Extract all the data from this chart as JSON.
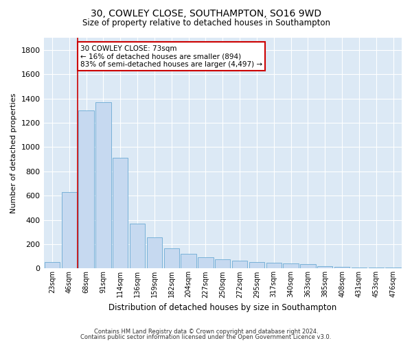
{
  "title_line1": "30, COWLEY CLOSE, SOUTHAMPTON, SO16 9WD",
  "title_line2": "Size of property relative to detached houses in Southampton",
  "xlabel": "Distribution of detached houses by size in Southampton",
  "ylabel": "Number of detached properties",
  "bar_color": "#c6d9f0",
  "bar_edge_color": "#6aaad4",
  "background_color": "#dce9f5",
  "grid_color": "#ffffff",
  "categories": [
    "23sqm",
    "46sqm",
    "68sqm",
    "91sqm",
    "114sqm",
    "136sqm",
    "159sqm",
    "182sqm",
    "204sqm",
    "227sqm",
    "250sqm",
    "272sqm",
    "295sqm",
    "317sqm",
    "340sqm",
    "363sqm",
    "385sqm",
    "408sqm",
    "431sqm",
    "453sqm",
    "476sqm"
  ],
  "values": [
    55,
    630,
    1300,
    1370,
    910,
    370,
    255,
    165,
    120,
    90,
    75,
    65,
    55,
    50,
    40,
    35,
    20,
    15,
    10,
    8,
    8
  ],
  "ylim": [
    0,
    1900
  ],
  "yticks": [
    0,
    200,
    400,
    600,
    800,
    1000,
    1200,
    1400,
    1600,
    1800
  ],
  "annotation_text": "30 COWLEY CLOSE: 73sqm\n← 16% of detached houses are smaller (894)\n83% of semi-detached houses are larger (4,497) →",
  "annotation_box_color": "#ffffff",
  "annotation_border_color": "#cc0000",
  "vline_color": "#cc0000",
  "vline_x_index": 1.5,
  "footer_line1": "Contains HM Land Registry data © Crown copyright and database right 2024.",
  "footer_line2": "Contains public sector information licensed under the Open Government Licence v3.0."
}
